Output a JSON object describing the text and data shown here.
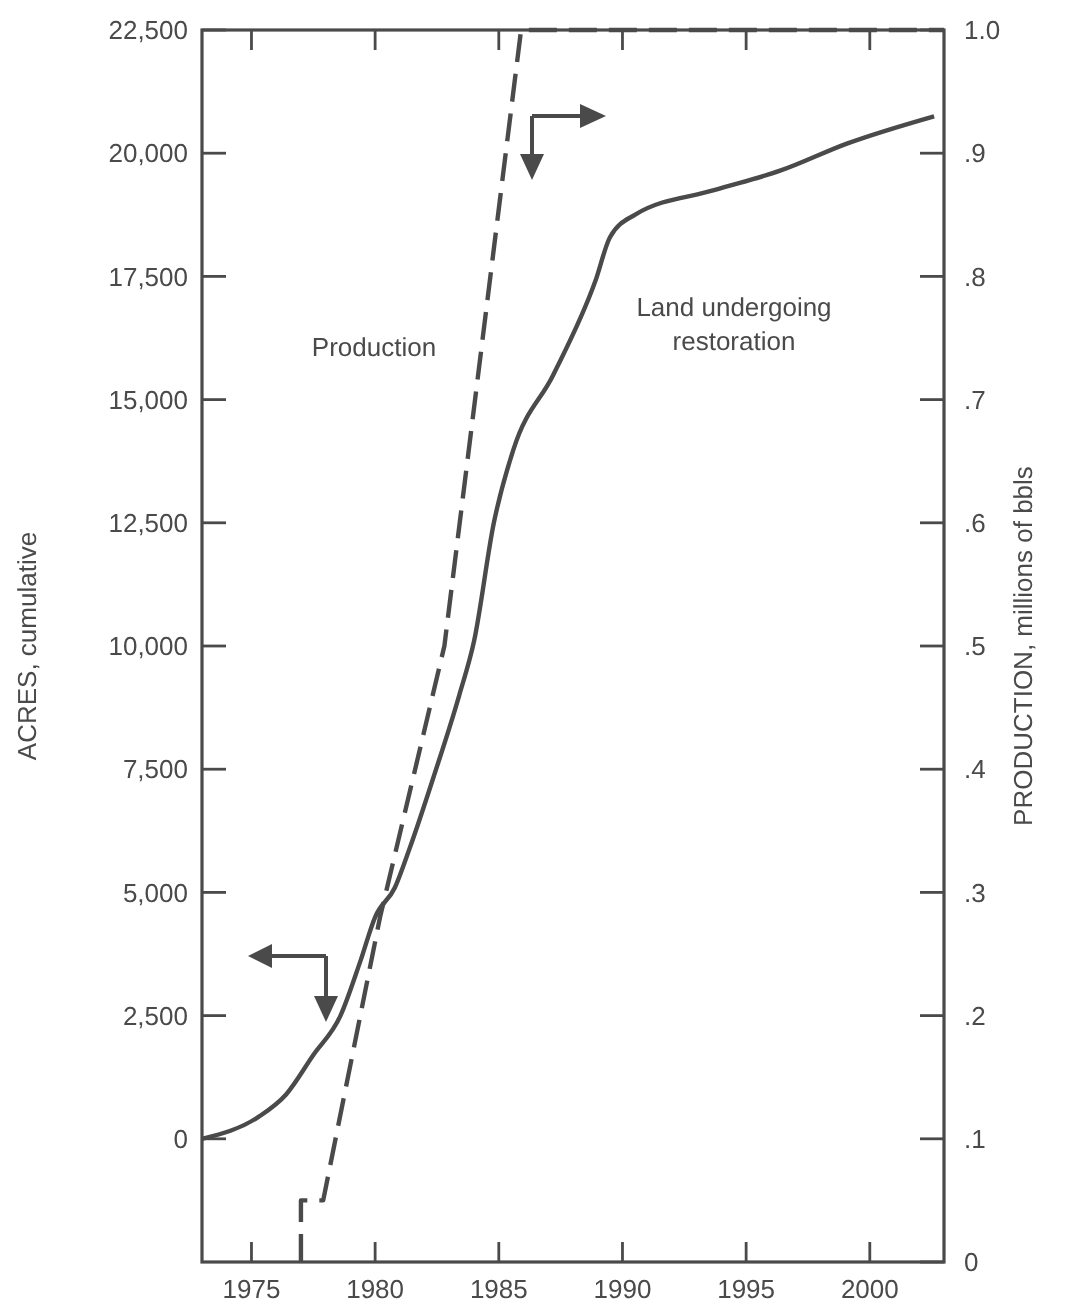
{
  "chart_data": {
    "type": "line",
    "xlabel": null,
    "ylabel": "ACRES, cumulative",
    "y2label": "PRODUCTION, millions of bbls",
    "xlim": [
      1973,
      2003
    ],
    "xticks": [
      1975,
      1980,
      1985,
      1990,
      1995,
      2000
    ],
    "ylim": [
      -2500,
      22500
    ],
    "yticks": [
      {
        "value": 0,
        "label": "0"
      },
      {
        "value": 2500,
        "label": "2,500"
      },
      {
        "value": 5000,
        "label": "5,000"
      },
      {
        "value": 7500,
        "label": "7,500"
      },
      {
        "value": 10000,
        "label": "10,000"
      },
      {
        "value": 12500,
        "label": "12,500"
      },
      {
        "value": 15000,
        "label": "15,000"
      },
      {
        "value": 17500,
        "label": "17,500"
      },
      {
        "value": 20000,
        "label": "20,000"
      },
      {
        "value": 22500,
        "label": "22,500"
      }
    ],
    "y2lim": [
      0,
      1
    ],
    "y2ticks": [
      0,
      {
        "value": 0.1,
        "label": ".1"
      },
      {
        "value": 0.2,
        "label": ".2"
      },
      {
        "value": 0.3,
        "label": ".3"
      },
      {
        "value": 0.4,
        "label": ".4"
      },
      {
        "value": 0.5,
        "label": ".5"
      },
      {
        "value": 0.6,
        "label": ".6"
      },
      {
        "value": 0.7,
        "label": ".7"
      },
      {
        "value": 0.8,
        "label": ".8"
      },
      {
        "value": 0.9,
        "label": ".9"
      },
      {
        "value": 1.0,
        "label": "1.0"
      }
    ],
    "grid": false,
    "marker": "none",
    "series": [
      {
        "name": "Land undergoing restoration",
        "color": "#4a4a4a",
        "line_style": "solid",
        "x": [
          1973,
          1975.3,
          1976.4,
          1977.5,
          1978.6,
          1979.4,
          1980.0,
          1980.8,
          1981.4,
          1982.4,
          1983.4,
          1984.0,
          1984.8,
          1985.6,
          1987.2,
          1988.9,
          1989.5,
          1990.5,
          1993.7,
          1996.4,
          1999.1,
          2002.6
        ],
        "values": [
          0,
          450,
          900,
          1700,
          2500,
          3600,
          4500,
          5100,
          5900,
          7400,
          9000,
          10100,
          12500,
          14000,
          15500,
          17400,
          18300,
          18750,
          19250,
          19650,
          20200,
          20750
        ]
      },
      {
        "name": "Production",
        "color": "#4a4a4a",
        "line_style": "dashed",
        "axis": "y2",
        "x": [
          1977,
          1977,
          1977.9,
          1980.2,
          1982.8,
          1985.9,
          2003
        ],
        "values": [
          0,
          0.05,
          0.05,
          0.28,
          0.5,
          1.0,
          1.0
        ]
      }
    ]
  }
}
